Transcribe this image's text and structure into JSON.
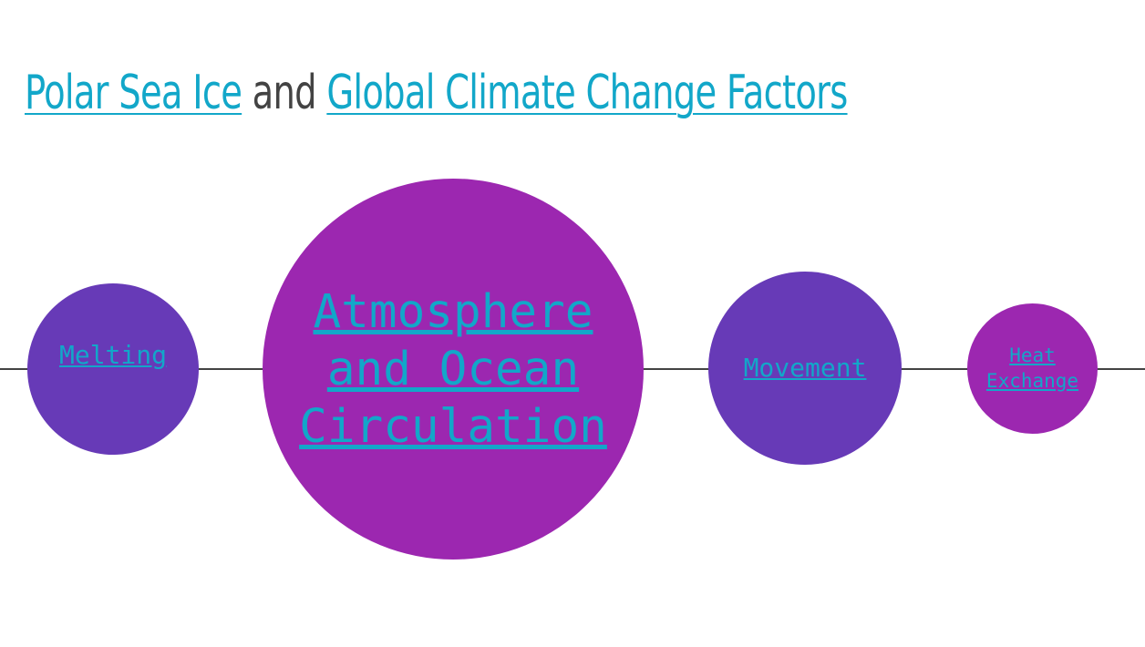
{
  "title": {
    "link1": "Polar Sea Ice",
    "joiner": "and",
    "link2": "Global Climate Change Factors"
  },
  "nodes": [
    {
      "label": "Melting",
      "color": "#673ab7"
    },
    {
      "label": "Atmosphere and Ocean Circulation",
      "color": "#9c27b0"
    },
    {
      "label": "Movement",
      "color": "#673ab7"
    },
    {
      "label": "Heat Exchange",
      "color": "#9c27b0"
    }
  ],
  "colors": {
    "link": "#12a7c9",
    "text": "#434343",
    "line": "#434343",
    "purple": "#9c27b0",
    "deep_purple": "#673ab7"
  }
}
